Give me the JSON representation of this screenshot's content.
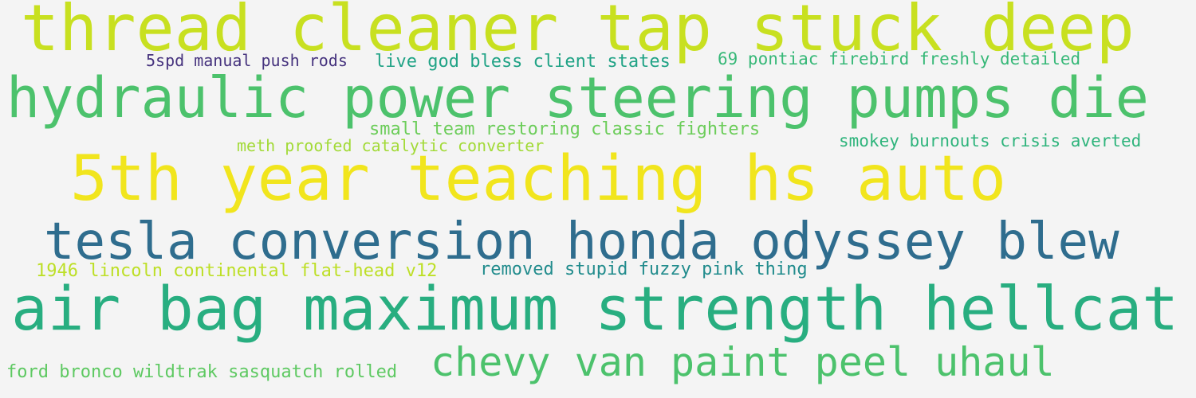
{
  "word_cloud": {
    "phrases": [
      {
        "text": "thread cleaner tap stuck deep",
        "color": "#c8e020"
      },
      {
        "text": "hydraulic power steering pumps die",
        "color": "#4cc26c"
      },
      {
        "text": "5th year teaching hs auto",
        "color": "#f1e51d"
      },
      {
        "text": "tesla conversion honda odyssey blew",
        "color": "#2f6d8e"
      },
      {
        "text": "air bag maximum strength hellcat",
        "color": "#28ae80"
      },
      {
        "text": "chevy van paint peel uhaul",
        "color": "#4cc26c"
      },
      {
        "text": "5spd manual push rods",
        "color": "#46337e"
      },
      {
        "text": "live god bless client states",
        "color": "#21a386"
      },
      {
        "text": "69 pontiac firebird freshly detailed",
        "color": "#37b878"
      },
      {
        "text": "small team restoring classic fighters",
        "color": "#6ccd5a"
      },
      {
        "text": "meth proofed catalytic converter",
        "color": "#a2da37"
      },
      {
        "text": "smokey burnouts crisis averted",
        "color": "#2fb47c"
      },
      {
        "text": "1946 lincoln continental flat-head v12",
        "color": "#bddf26"
      },
      {
        "text": "removed stupid fuzzy pink thing",
        "color": "#228c8d"
      },
      {
        "text": "ford bronco wildtrak sasquatch rolled",
        "color": "#5ec962"
      }
    ]
  }
}
